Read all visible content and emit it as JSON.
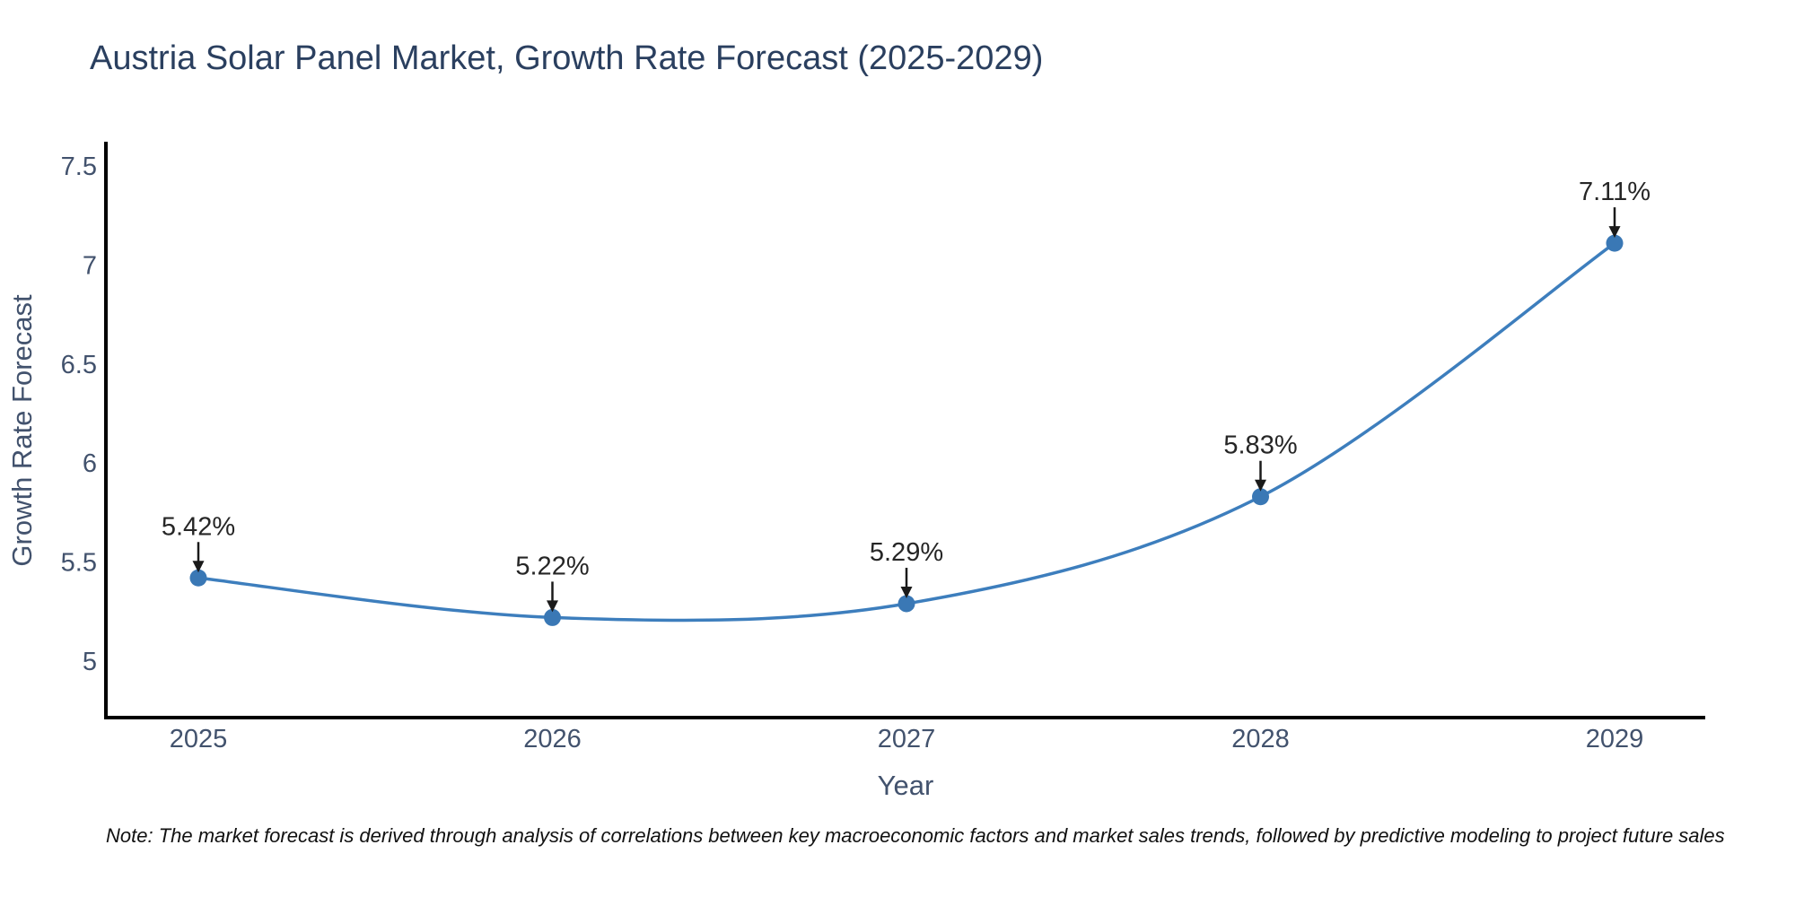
{
  "title": "Austria Solar Panel Market, Growth Rate Forecast (2025-2029)",
  "note": "Note: The market forecast is derived through analysis of correlations between key macroeconomic factors and market sales trends, followed by predictive modeling to project future sales",
  "colors": {
    "line": "#3d7ebd",
    "marker": "#3a78b5",
    "axis_spine": "#000000",
    "annotation_arrow": "#1a1a1a",
    "annotation_text": "#262626",
    "title_text": "#2a3f5f",
    "tick_text": "#42526d",
    "note_text": "#111111",
    "background": "#ffffff"
  },
  "chart_data": {
    "type": "line",
    "line_shape": "spline",
    "title": "Austria Solar Panel Market, Growth Rate Forecast (2025-2029)",
    "xlabel": "Year",
    "ylabel": "Growth Rate Forecast",
    "x": [
      2025,
      2026,
      2027,
      2028,
      2029
    ],
    "series": [
      {
        "name": "Growth Rate Forecast",
        "values": [
          5.42,
          5.22,
          5.29,
          5.83,
          7.11
        ]
      }
    ],
    "point_labels": [
      "5.42%",
      "5.22%",
      "5.29%",
      "5.83%",
      "7.11%"
    ],
    "x_tick_labels": [
      "2025",
      "2026",
      "2027",
      "2028",
      "2029"
    ],
    "y_tick_labels": [
      "5",
      "5.5",
      "6",
      "6.5",
      "7",
      "7.5"
    ],
    "y_tick_values": [
      5,
      5.5,
      6,
      6.5,
      7,
      7.5
    ],
    "ylim": [
      4.71,
      7.61
    ],
    "grid": false,
    "legend": false,
    "annotation_style": "black down-arrow from value label to each marker"
  }
}
